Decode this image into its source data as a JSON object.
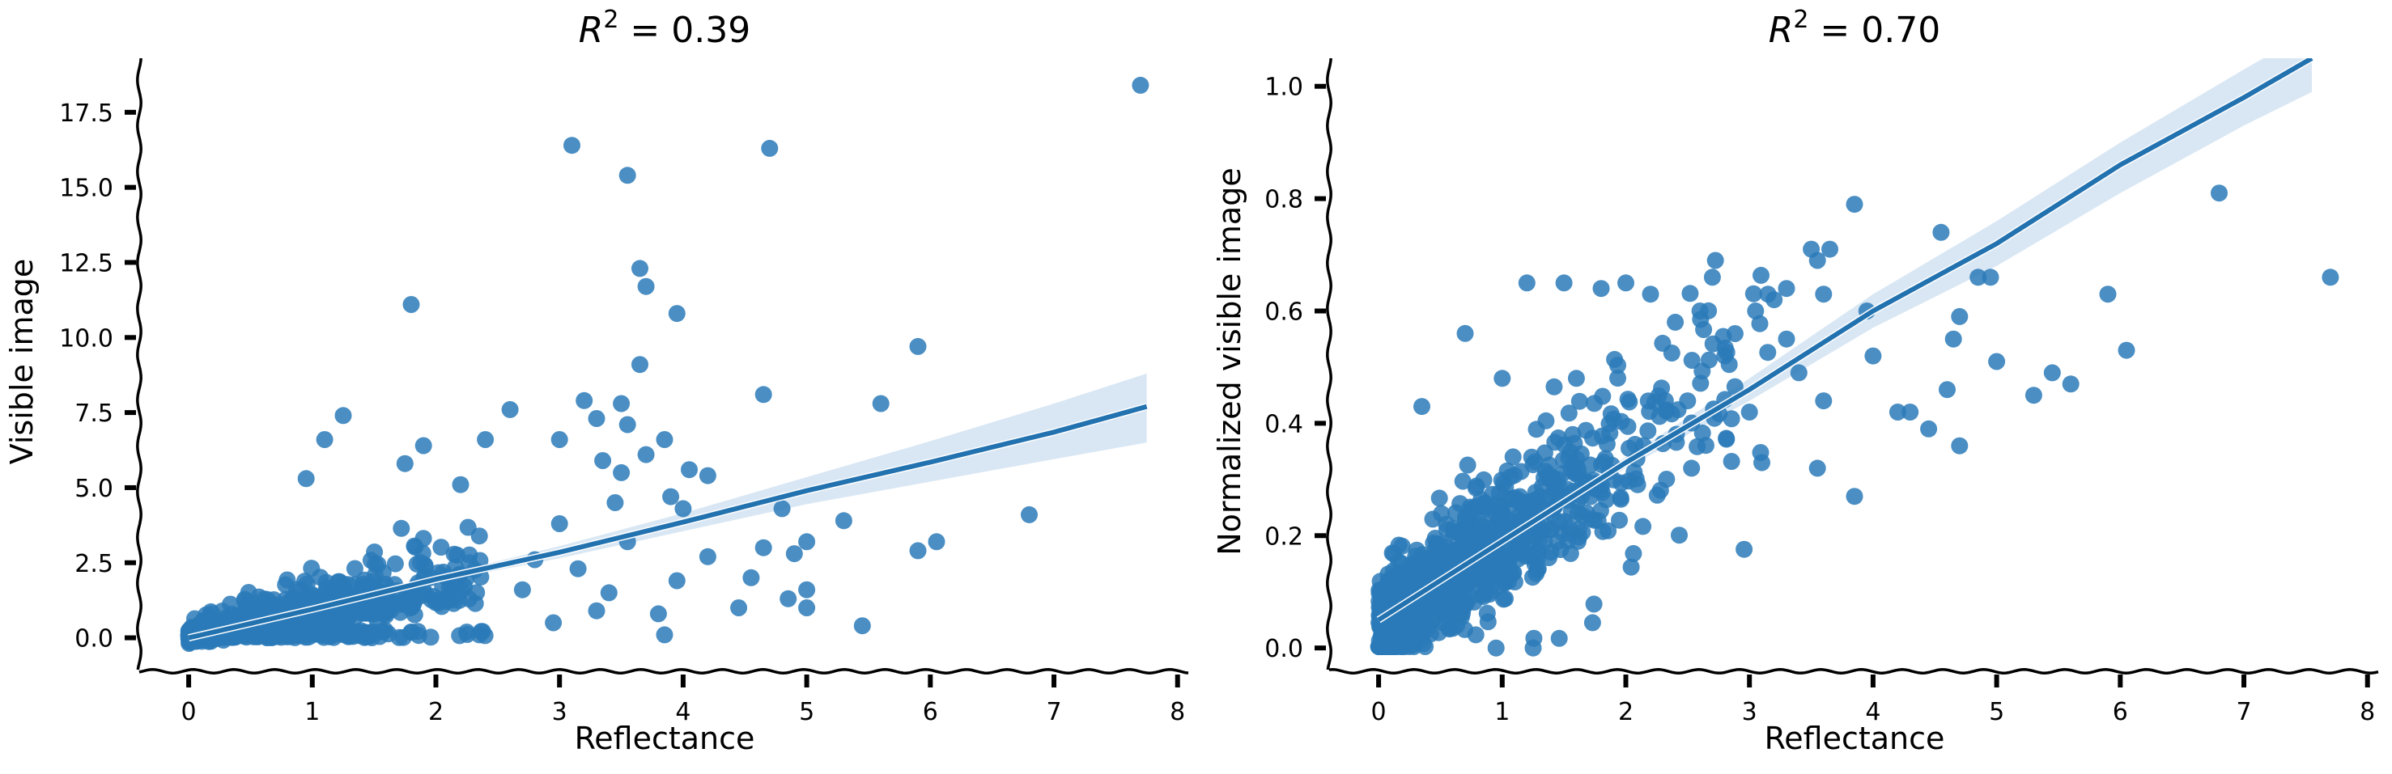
{
  "chart_data": [
    {
      "type": "scatter",
      "title_prefix": "R",
      "title_sup": "2",
      "title_suffix": " = 0.39",
      "xlabel": "Reflectance",
      "ylabel": "Visible image",
      "xlim": [
        -0.4,
        8.1
      ],
      "ylim": [
        -0.9,
        19.3
      ],
      "xticks": [
        0,
        1,
        2,
        3,
        4,
        5,
        6,
        7,
        8
      ],
      "yticks": [
        0.0,
        2.5,
        5.0,
        7.5,
        10.0,
        12.5,
        15.0,
        17.5
      ],
      "xtick_labels": [
        "0",
        "1",
        "2",
        "3",
        "4",
        "5",
        "6",
        "7",
        "8"
      ],
      "ytick_labels": [
        "0.0",
        "2.5",
        "5.0",
        "7.5",
        "10.0",
        "12.5",
        "15.0",
        "17.5"
      ],
      "color": "#2a7ab8",
      "grid": false,
      "cluster": {
        "x_scale": 0.85,
        "x_max": 2.4,
        "slope": 0.55,
        "noise": 0.7,
        "count": 900
      },
      "points": [
        [
          7.7,
          18.4
        ],
        [
          3.1,
          16.4
        ],
        [
          4.7,
          16.3
        ],
        [
          3.55,
          15.4
        ],
        [
          3.65,
          12.3
        ],
        [
          3.7,
          11.7
        ],
        [
          1.8,
          11.1
        ],
        [
          3.95,
          10.8
        ],
        [
          5.9,
          9.7
        ],
        [
          3.65,
          9.1
        ],
        [
          4.65,
          8.1
        ],
        [
          5.6,
          7.8
        ],
        [
          3.2,
          7.9
        ],
        [
          3.5,
          7.8
        ],
        [
          1.25,
          7.4
        ],
        [
          2.6,
          7.6
        ],
        [
          3.3,
          7.3
        ],
        [
          3.55,
          7.1
        ],
        [
          1.1,
          6.6
        ],
        [
          2.4,
          6.6
        ],
        [
          3.0,
          6.6
        ],
        [
          3.85,
          6.6
        ],
        [
          1.9,
          6.4
        ],
        [
          3.7,
          6.1
        ],
        [
          6.8,
          4.1
        ],
        [
          3.35,
          5.9
        ],
        [
          4.2,
          5.4
        ],
        [
          4.05,
          5.6
        ],
        [
          1.75,
          5.8
        ],
        [
          2.2,
          5.1
        ],
        [
          3.5,
          5.5
        ],
        [
          0.95,
          5.3
        ],
        [
          5.3,
          3.9
        ],
        [
          4.8,
          4.3
        ],
        [
          3.45,
          4.5
        ],
        [
          3.9,
          4.7
        ],
        [
          4.0,
          4.3
        ],
        [
          5.0,
          3.2
        ],
        [
          6.05,
          3.2
        ],
        [
          4.65,
          3.0
        ],
        [
          4.9,
          2.8
        ],
        [
          5.9,
          2.9
        ],
        [
          4.55,
          2.0
        ],
        [
          4.45,
          1.0
        ],
        [
          5.0,
          1.0
        ],
        [
          5.0,
          1.6
        ],
        [
          4.85,
          1.3
        ],
        [
          5.45,
          0.4
        ],
        [
          3.8,
          0.8
        ],
        [
          3.85,
          0.1
        ],
        [
          3.95,
          1.9
        ],
        [
          4.2,
          2.7
        ],
        [
          3.55,
          3.2
        ],
        [
          3.4,
          1.5
        ],
        [
          3.15,
          2.3
        ],
        [
          2.95,
          0.5
        ],
        [
          3.3,
          0.9
        ],
        [
          3.0,
          3.8
        ],
        [
          2.7,
          1.6
        ],
        [
          2.8,
          2.6
        ]
      ],
      "fit_line": {
        "x": [
          0,
          1,
          2,
          3,
          4,
          5,
          6,
          7,
          7.75
        ],
        "y": [
          0.0,
          0.95,
          1.95,
          2.85,
          3.85,
          4.9,
          5.85,
          6.85,
          7.7
        ]
      },
      "ci_upper": [
        0.05,
        1.05,
        2.05,
        3.05,
        4.15,
        5.35,
        6.55,
        7.8,
        8.8
      ],
      "ci_lower": [
        -0.05,
        0.85,
        1.85,
        2.65,
        3.55,
        4.45,
        5.2,
        5.95,
        6.5
      ]
    },
    {
      "type": "scatter",
      "title_prefix": "R",
      "title_sup": "2",
      "title_suffix": " = 0.70",
      "xlabel": "Reflectance",
      "ylabel": "Normalized visible image",
      "xlim": [
        -0.4,
        8.1
      ],
      "ylim": [
        -0.03,
        1.05
      ],
      "xticks": [
        0,
        1,
        2,
        3,
        4,
        5,
        6,
        7,
        8
      ],
      "yticks": [
        0.0,
        0.2,
        0.4,
        0.6,
        0.8,
        1.0
      ],
      "xtick_labels": [
        "0",
        "1",
        "2",
        "3",
        "4",
        "5",
        "6",
        "7",
        "8"
      ],
      "ytick_labels": [
        "0.0",
        "0.2",
        "0.4",
        "0.6",
        "0.8",
        "1.0"
      ],
      "color": "#2a7ab8",
      "grid": false,
      "cluster": {
        "x_scale": 0.9,
        "x_max": 3.2,
        "slope": 0.155,
        "intercept": 0.04,
        "noise": 0.07,
        "count": 1000
      },
      "points": [
        [
          6.8,
          0.81
        ],
        [
          7.7,
          0.66
        ],
        [
          6.05,
          0.53
        ],
        [
          5.9,
          0.63
        ],
        [
          5.6,
          0.47
        ],
        [
          5.45,
          0.49
        ],
        [
          5.3,
          0.45
        ],
        [
          5.0,
          0.51
        ],
        [
          4.95,
          0.66
        ],
        [
          4.85,
          0.66
        ],
        [
          4.65,
          0.55
        ],
        [
          4.7,
          0.59
        ],
        [
          4.55,
          0.74
        ],
        [
          4.7,
          0.36
        ],
        [
          4.6,
          0.46
        ],
        [
          4.45,
          0.39
        ],
        [
          4.3,
          0.42
        ],
        [
          4.2,
          0.42
        ],
        [
          3.85,
          0.79
        ],
        [
          3.65,
          0.71
        ],
        [
          3.5,
          0.71
        ],
        [
          3.55,
          0.69
        ],
        [
          3.2,
          0.62
        ],
        [
          3.15,
          0.63
        ],
        [
          3.95,
          0.6
        ],
        [
          4.0,
          0.52
        ],
        [
          3.6,
          0.63
        ],
        [
          3.3,
          0.64
        ],
        [
          3.4,
          0.49
        ],
        [
          3.85,
          0.27
        ],
        [
          3.55,
          0.32
        ],
        [
          3.6,
          0.44
        ],
        [
          3.0,
          0.42
        ],
        [
          3.1,
          0.33
        ],
        [
          2.8,
          0.52
        ],
        [
          3.05,
          0.6
        ],
        [
          0.35,
          0.43
        ],
        [
          0.7,
          0.56
        ],
        [
          1.2,
          0.65
        ],
        [
          1.5,
          0.65
        ],
        [
          1.8,
          0.64
        ],
        [
          2.0,
          0.65
        ],
        [
          2.2,
          0.63
        ],
        [
          2.7,
          0.66
        ],
        [
          1.6,
          0.48
        ],
        [
          1.0,
          0.48
        ],
        [
          0.95,
          0.0
        ],
        [
          1.25,
          0.0
        ],
        [
          1.45,
          0.3
        ],
        [
          2.4,
          0.58
        ],
        [
          2.6,
          0.6
        ],
        [
          3.3,
          0.55
        ]
      ],
      "fit_line": {
        "x": [
          0,
          1,
          2,
          3,
          4,
          5,
          6,
          7,
          7.55
        ],
        "y": [
          0.05,
          0.19,
          0.33,
          0.46,
          0.6,
          0.72,
          0.86,
          0.98,
          1.05
        ]
      },
      "ci_upper": [
        0.06,
        0.2,
        0.34,
        0.48,
        0.63,
        0.76,
        0.9,
        1.03,
        1.1
      ],
      "ci_lower": [
        0.04,
        0.18,
        0.32,
        0.44,
        0.57,
        0.68,
        0.81,
        0.93,
        0.99
      ]
    }
  ]
}
